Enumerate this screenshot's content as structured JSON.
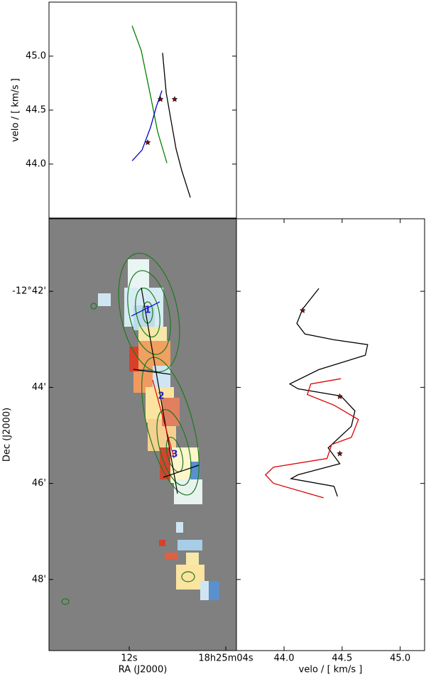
{
  "chart_data": [
    {
      "type": "line",
      "ylabel": "velo / [ km/s ]",
      "xlim": [
        18.65,
        3.12
      ],
      "ylim": [
        43.5,
        45.5
      ],
      "yticks": [
        {
          "value": 44,
          "label": "44.0"
        },
        {
          "value": 44.5,
          "label": "44.5"
        },
        {
          "value": 45,
          "label": "45.0"
        }
      ],
      "series": [
        {
          "color": "#008000",
          "x": [
            11.76,
            11.0,
            10.18,
            9.65,
            8.88
          ],
          "values": [
            45.28,
            45.05,
            44.6,
            44.3,
            44.01
          ]
        },
        {
          "color": "#000000",
          "x": [
            9.24,
            8.94,
            8.53,
            8.12,
            7.65,
            6.94
          ],
          "values": [
            45.03,
            44.66,
            44.4,
            44.14,
            43.94,
            43.69
          ]
        },
        {
          "color": "#0000cc",
          "x": [
            11.76,
            10.94,
            10.24,
            9.76,
            9.29
          ],
          "values": [
            44.03,
            44.13,
            44.34,
            44.53,
            44.68
          ]
        },
        {
          "color": "#7a1010",
          "marker": "star",
          "x": [
            10.47,
            9.41,
            8.24
          ],
          "values": [
            44.2,
            44.6,
            44.6
          ]
        }
      ]
    },
    {
      "type": "image",
      "xlabel": "RA (J2000)",
      "ylabel": "Dec (J2000)",
      "xlim": [
        18.65,
        3.12
      ],
      "ylim": [
        49.48,
        40.49
      ],
      "xticks": [
        {
          "value": 12,
          "label": "12s"
        },
        {
          "value": 4,
          "label": "18h25m04s"
        }
      ],
      "yticks": [
        {
          "value": 42,
          "label": "-12°42'"
        },
        {
          "value": 44,
          "label": "44'"
        },
        {
          "value": 46,
          "label": "46'"
        },
        {
          "value": 48,
          "label": "48'"
        }
      ],
      "annotations": [
        "1",
        "2",
        "3"
      ]
    },
    {
      "type": "line-horizontal",
      "xlabel": "velo / [ km/s ]",
      "xlim": [
        43.59,
        45.21
      ],
      "ylim": [
        49.48,
        40.49
      ],
      "xticks": [
        {
          "value": 44,
          "label": "44.0"
        },
        {
          "value": 44.5,
          "label": "44.5"
        },
        {
          "value": 45,
          "label": "45.0"
        }
      ],
      "yticks": [
        42,
        44,
        46,
        48
      ],
      "series": [
        {
          "color": "#000000",
          "values": [
            44.3,
            44.16,
            44.11,
            44.18,
            44.43,
            44.72,
            44.7,
            44.3,
            44.05,
            44.12,
            44.49,
            44.61,
            44.58,
            44.38,
            44.48,
            44.12,
            44.06,
            44.43,
            44.46
          ],
          "y": [
            41.94,
            42.37,
            42.67,
            42.89,
            43.01,
            43.11,
            43.33,
            43.63,
            43.93,
            44.03,
            44.18,
            44.49,
            44.81,
            45.26,
            45.59,
            45.82,
            45.9,
            46.06,
            46.27
          ]
        },
        {
          "color": "#dd0000",
          "values": [
            44.49,
            44.23,
            44.2,
            44.43,
            44.64,
            44.58,
            44.41,
            44.37,
            43.91,
            43.84,
            43.91,
            44.34
          ],
          "y": [
            43.82,
            43.93,
            44.15,
            44.37,
            44.67,
            45.04,
            45.19,
            45.48,
            45.66,
            45.82,
            46.0,
            46.3
          ]
        },
        {
          "color": "#7a1010",
          "marker": "star",
          "values": [
            44.16,
            44.48,
            44.48
          ],
          "y": [
            42.4,
            44.19,
            45.38
          ]
        }
      ]
    }
  ]
}
